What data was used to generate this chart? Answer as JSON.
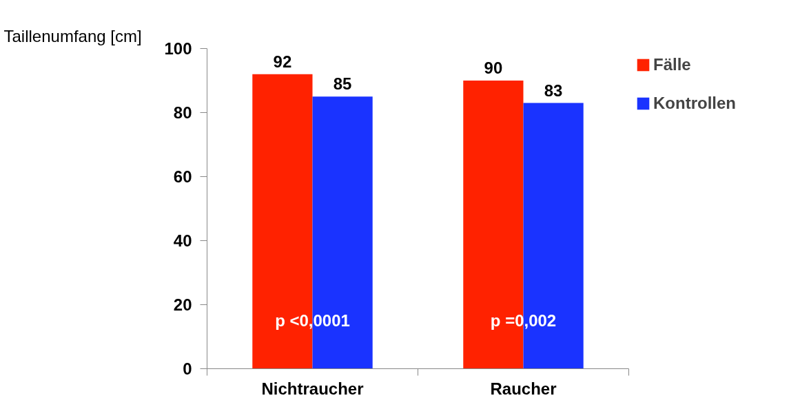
{
  "chart_data": {
    "type": "bar",
    "ylabel": "Taillenumfang [cm]",
    "categories": [
      "Nichtraucher",
      "Raucher"
    ],
    "series": [
      {
        "name": "Fälle",
        "color": "#ff2200",
        "values": [
          92,
          90
        ]
      },
      {
        "name": "Kontrollen",
        "color": "#1a33ff",
        "values": [
          85,
          83
        ]
      }
    ],
    "ylim": [
      0,
      100
    ],
    "yticks": [
      0,
      20,
      40,
      60,
      80,
      100
    ],
    "grid": false,
    "legend": "top right",
    "data_labels": true,
    "annotations": [
      {
        "text": "p <0,0001",
        "x": "Nichtraucher",
        "y": 15
      },
      {
        "text": "p =0,002",
        "x": "Raucher",
        "y": 15
      }
    ]
  }
}
